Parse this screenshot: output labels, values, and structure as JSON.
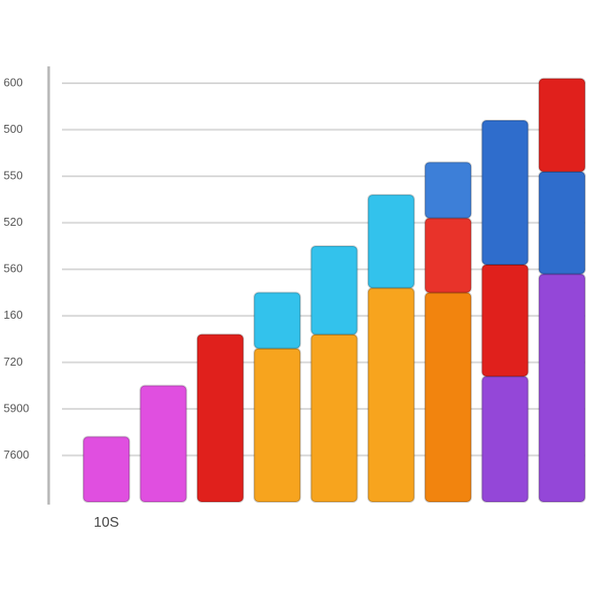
{
  "chart_data": {
    "type": "stacked-bar",
    "categories": [
      "10S",
      null,
      null,
      null,
      null,
      null,
      null,
      null,
      null
    ],
    "bars": [
      {
        "segments": [
          {
            "color": "#e04fe0",
            "value": 1.4
          }
        ]
      },
      {
        "segments": [
          {
            "color": "#e04fe0",
            "value": 2.5
          }
        ]
      },
      {
        "segments": [
          {
            "color": "#e0201c",
            "value": 3.6
          }
        ]
      },
      {
        "segments": [
          {
            "color": "#f7a41e",
            "value": 3.3
          },
          {
            "color": "#33c2ec",
            "value": 1.2
          }
        ]
      },
      {
        "segments": [
          {
            "color": "#f7a41e",
            "value": 3.6
          },
          {
            "color": "#33c2ec",
            "value": 1.9
          }
        ]
      },
      {
        "segments": [
          {
            "color": "#f7a41e",
            "value": 4.6
          },
          {
            "color": "#33c2ec",
            "value": 2.0
          }
        ]
      },
      {
        "segments": [
          {
            "color": "#f2840e",
            "value": 4.5
          },
          {
            "color": "#e8332a",
            "value": 1.6
          },
          {
            "color": "#3d7fd8",
            "value": 1.2
          }
        ]
      },
      {
        "segments": [
          {
            "color": "#9447d8",
            "value": 2.7
          },
          {
            "color": "#e0201c",
            "value": 2.4
          },
          {
            "color": "#2f6dcc",
            "value": 3.1
          }
        ]
      },
      {
        "segments": [
          {
            "color": "#9447d8",
            "value": 4.9
          },
          {
            "color": "#2f6dcc",
            "value": 2.2
          },
          {
            "color": "#e0201c",
            "value": 2.0
          }
        ]
      }
    ],
    "ylim": [
      0,
      9
    ],
    "yticks": [
      {
        "value": 1,
        "label": "7600"
      },
      {
        "value": 2,
        "label": "5900"
      },
      {
        "value": 3,
        "label": "720"
      },
      {
        "value": 4,
        "label": "160"
      },
      {
        "value": 5,
        "label": "560"
      },
      {
        "value": 6,
        "label": "520"
      },
      {
        "value": 7,
        "label": "550"
      },
      {
        "value": 8,
        "label": "500"
      },
      {
        "value": 9,
        "label": "600"
      }
    ],
    "grid": true
  }
}
